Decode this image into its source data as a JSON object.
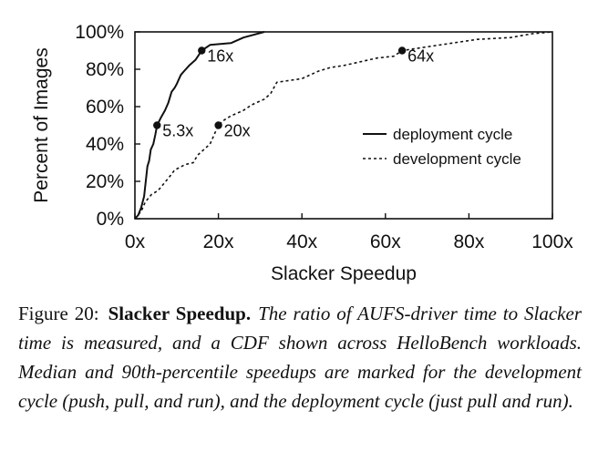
{
  "chart_data": {
    "type": "line",
    "xlabel": "Slacker Speedup",
    "ylabel": "Percent of Images",
    "xlim": [
      0,
      100
    ],
    "ylim": [
      0,
      100
    ],
    "x_ticks": [
      "0x",
      "20x",
      "40x",
      "60x",
      "80x",
      "100x"
    ],
    "y_ticks": [
      "0%",
      "20%",
      "40%",
      "60%",
      "80%",
      "100%"
    ],
    "legend_position": "center-right",
    "series": [
      {
        "name": "deployment cycle",
        "style": "solid",
        "points": [
          [
            0,
            0
          ],
          [
            0.8,
            2
          ],
          [
            1.5,
            6
          ],
          [
            2.2,
            12
          ],
          [
            2.6,
            20
          ],
          [
            3.0,
            28
          ],
          [
            3.4,
            31
          ],
          [
            3.8,
            37
          ],
          [
            4.4,
            40
          ],
          [
            4.9,
            45
          ],
          [
            5.3,
            50
          ],
          [
            6.2,
            54
          ],
          [
            7.2,
            58
          ],
          [
            8.0,
            62
          ],
          [
            8.8,
            68
          ],
          [
            9.5,
            70
          ],
          [
            10.0,
            72
          ],
          [
            10.4,
            74
          ],
          [
            11.0,
            77
          ],
          [
            11.8,
            79
          ],
          [
            13.0,
            82
          ],
          [
            14.5,
            85
          ],
          [
            16.0,
            90
          ],
          [
            18.0,
            93
          ],
          [
            23.0,
            94
          ],
          [
            26.0,
            97
          ],
          [
            31.0,
            100
          ]
        ]
      },
      {
        "name": "development cycle",
        "style": "dashed",
        "points": [
          [
            0,
            0
          ],
          [
            1.5,
            4
          ],
          [
            2.5,
            9
          ],
          [
            4.0,
            13
          ],
          [
            5.5,
            15
          ],
          [
            7.0,
            19
          ],
          [
            8.5,
            23
          ],
          [
            9.5,
            26
          ],
          [
            12.0,
            29
          ],
          [
            14.0,
            30
          ],
          [
            15.0,
            34
          ],
          [
            16.5,
            37
          ],
          [
            18.0,
            40
          ],
          [
            18.6,
            43
          ],
          [
            19.2,
            46
          ],
          [
            20.0,
            50
          ],
          [
            21.5,
            53
          ],
          [
            23.0,
            55
          ],
          [
            26.0,
            58
          ],
          [
            28.0,
            61
          ],
          [
            31.0,
            64
          ],
          [
            32.5,
            67
          ],
          [
            34.0,
            73
          ],
          [
            37.0,
            74
          ],
          [
            40.0,
            75
          ],
          [
            44.0,
            79
          ],
          [
            47.0,
            81
          ],
          [
            50.0,
            82
          ],
          [
            54.0,
            84
          ],
          [
            58.0,
            86
          ],
          [
            62.0,
            87
          ],
          [
            64.0,
            90
          ],
          [
            70.0,
            92
          ],
          [
            76.0,
            94
          ],
          [
            82.0,
            96
          ],
          [
            90.0,
            97
          ],
          [
            95.0,
            99
          ],
          [
            100.0,
            100
          ]
        ]
      }
    ],
    "annotations": [
      {
        "series": "deployment cycle",
        "x": 5.3,
        "y": 50,
        "label": "5.3x"
      },
      {
        "series": "deployment cycle",
        "x": 16,
        "y": 90,
        "label": "16x"
      },
      {
        "series": "development cycle",
        "x": 20,
        "y": 50,
        "label": "20x"
      },
      {
        "series": "development cycle",
        "x": 64,
        "y": 90,
        "label": "64x"
      }
    ]
  },
  "caption": {
    "label": "Figure 20:",
    "title": "Slacker Speedup.",
    "body": "The ratio of AUFS-driver time to Slacker time is measured, and a CDF shown across HelloBench workloads. Median and 90th-percentile speedups are marked for the development cycle (push, pull, and run), and the deployment cycle (just pull and run)."
  }
}
